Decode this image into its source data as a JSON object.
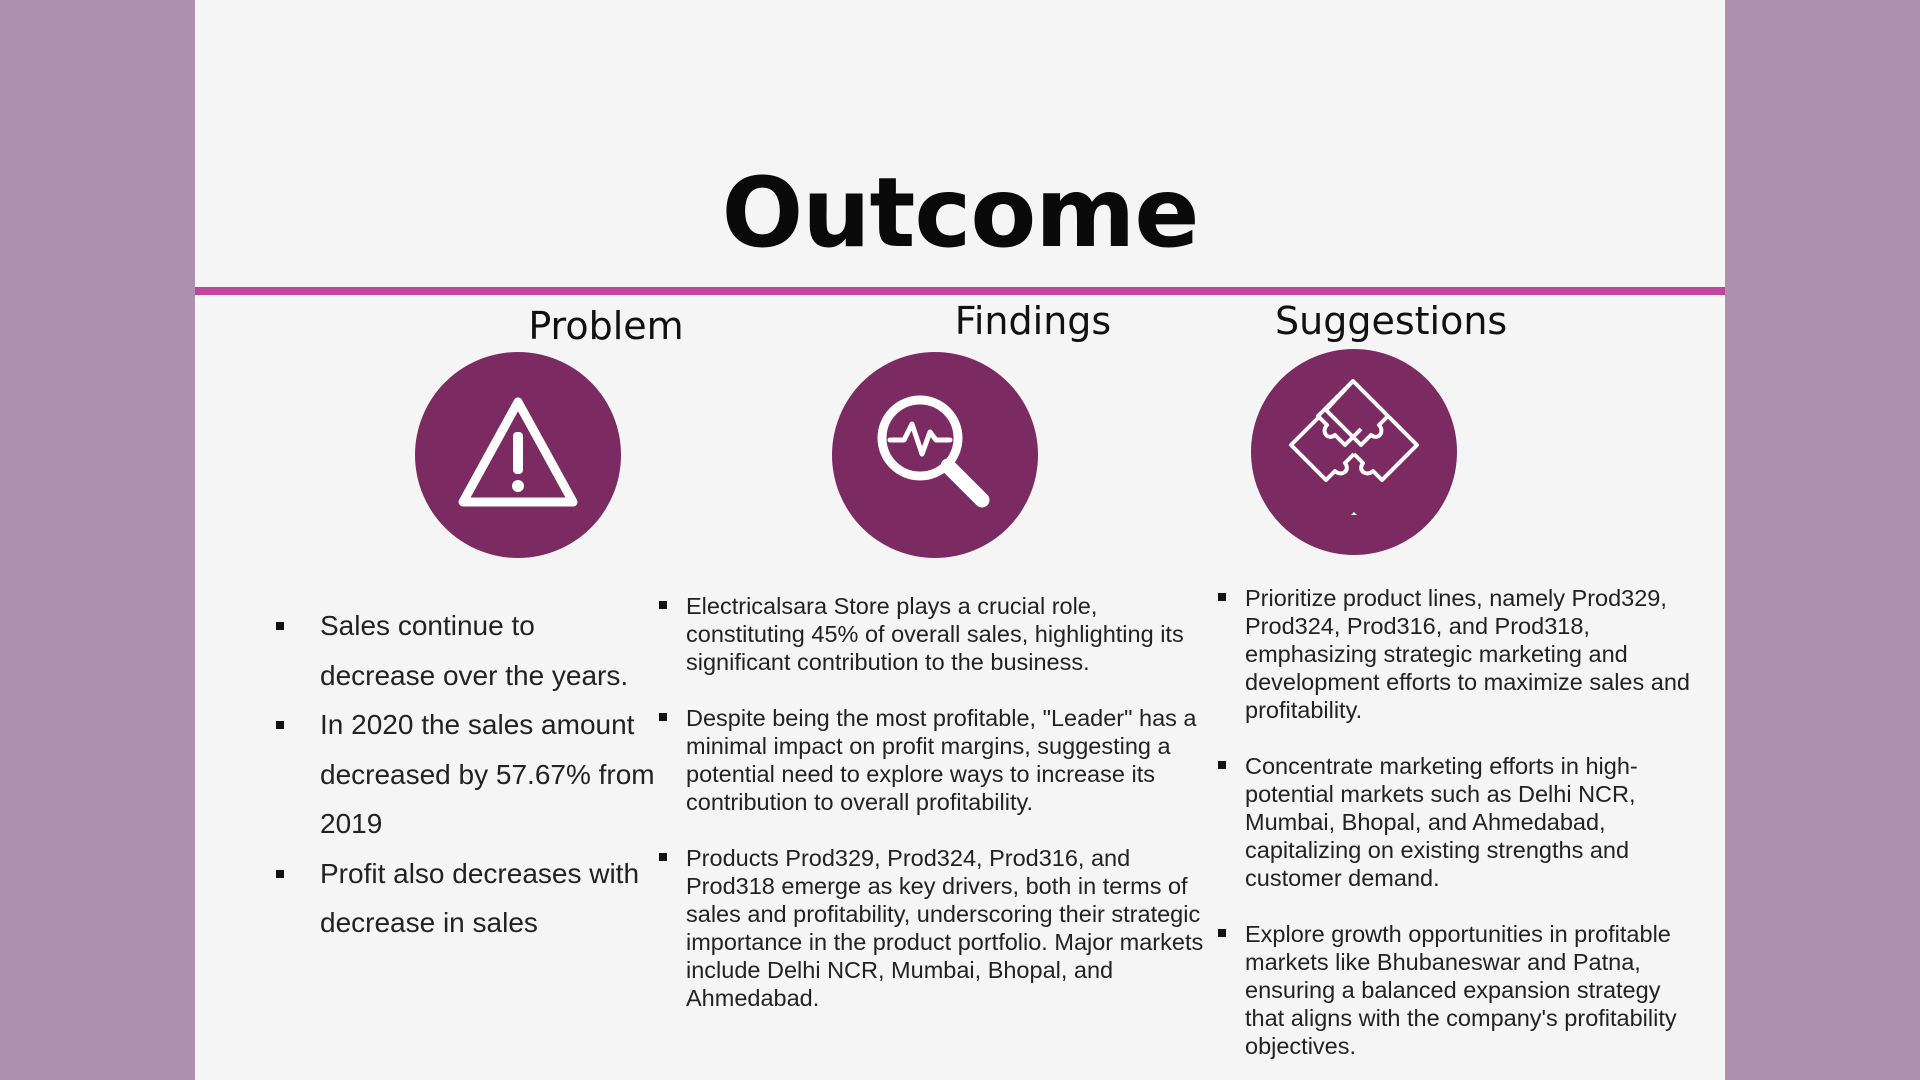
{
  "slide": {
    "title": "Outcome",
    "accent_color": "#c2449b",
    "circle_color": "#7c2b62",
    "background_color": "#ad8fae"
  },
  "columns": {
    "problem": {
      "heading": "Problem",
      "icon": "warning-triangle-icon",
      "bullets": [
        "Sales continue to decrease over the years.",
        "In 2020 the sales amount decreased by 57.67% from 2019",
        "Profit also decreases with decrease in sales"
      ]
    },
    "findings": {
      "heading": "Findings",
      "icon": "magnifier-pulse-icon",
      "bullets": [
        "Electricalsara Store plays a crucial role, constituting 45% of overall sales, highlighting its significant contribution to the business.",
        "Despite being the most profitable, \"Leader\" has a minimal impact on profit margins, suggesting a potential need to explore ways to increase its contribution to overall profitability.",
        "Products Prod329, Prod324, Prod316, and Prod318 emerge as key drivers, both in terms of sales and profitability, underscoring their strategic importance in the product portfolio. Major markets include Delhi NCR, Mumbai, Bhopal, and Ahmedabad."
      ]
    },
    "suggestions": {
      "heading": "Suggestions",
      "icon": "puzzle-pieces-icon",
      "bullets": [
        "Prioritize product lines, namely Prod329, Prod324, Prod316, and Prod318, emphasizing strategic marketing and development efforts to maximize sales and profitability.",
        "Concentrate marketing efforts in high-potential markets such as Delhi NCR, Mumbai, Bhopal, and Ahmedabad, capitalizing on existing strengths and customer demand.",
        "Explore growth opportunities in profitable markets like Bhubaneswar and Patna, ensuring a balanced expansion strategy that aligns with the company's profitability objectives."
      ]
    }
  }
}
